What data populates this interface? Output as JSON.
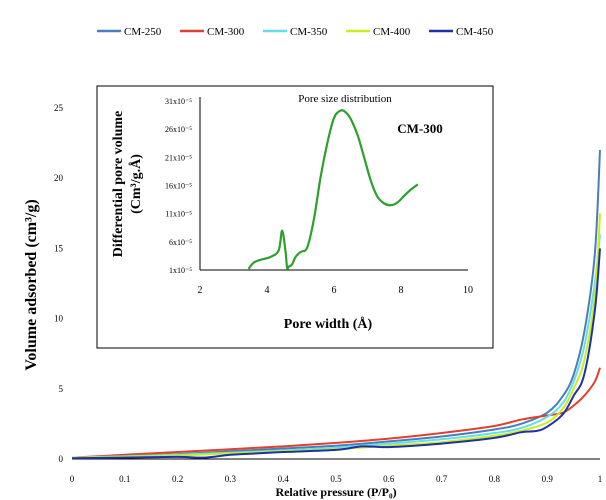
{
  "chart_data": [
    {
      "type": "line",
      "xlabel": "Relative pressure (P/P₀)",
      "ylabel": "Volume adsorbed (cm³/g)",
      "xlim": [
        0,
        1
      ],
      "ylim": [
        0,
        25
      ],
      "xticks": [
        "0",
        "0.1",
        "0.2",
        "0.3",
        "0.4",
        "0.5",
        "0.6",
        "0.7",
        "0.8",
        "0.9",
        "1"
      ],
      "yticks": [
        "0",
        "5",
        "10",
        "15",
        "20",
        "25"
      ],
      "grid": false,
      "legend_position": "top",
      "series": [
        {
          "name": "CM-250",
          "color": "#4a7ebb",
          "x": [
            0,
            0.1,
            0.2,
            0.3,
            0.4,
            0.5,
            0.6,
            0.7,
            0.8,
            0.85,
            0.9,
            0.93,
            0.95,
            0.97,
            0.99,
            1.0
          ],
          "y": [
            0.1,
            0.2,
            0.35,
            0.55,
            0.75,
            0.95,
            1.25,
            1.6,
            2.1,
            2.5,
            3.3,
            4.5,
            6.0,
            9.0,
            14.5,
            22
          ]
        },
        {
          "name": "CM-300",
          "color": "#e0412c",
          "x": [
            0,
            0.1,
            0.2,
            0.3,
            0.4,
            0.5,
            0.6,
            0.7,
            0.8,
            0.85,
            0.9,
            0.93,
            0.95,
            0.97,
            0.99,
            1.0
          ],
          "y": [
            0.1,
            0.3,
            0.5,
            0.7,
            0.9,
            1.15,
            1.45,
            1.85,
            2.35,
            2.8,
            3.1,
            3.3,
            3.8,
            4.5,
            5.5,
            6.5
          ]
        },
        {
          "name": "CM-350",
          "color": "#66ddea",
          "x": [
            0,
            0.1,
            0.2,
            0.3,
            0.4,
            0.5,
            0.6,
            0.7,
            0.8,
            0.85,
            0.9,
            0.93,
            0.95,
            0.97,
            0.99,
            1.0
          ],
          "y": [
            0.1,
            0.2,
            0.3,
            0.45,
            0.6,
            0.8,
            1.1,
            1.4,
            1.85,
            2.2,
            3.0,
            4.0,
            5.5,
            8.0,
            12.5,
            16
          ]
        },
        {
          "name": "CM-400",
          "color": "#c8ee1e",
          "x": [
            0,
            0.1,
            0.2,
            0.3,
            0.4,
            0.5,
            0.6,
            0.7,
            0.8,
            0.85,
            0.9,
            0.93,
            0.95,
            0.97,
            0.99,
            1.0
          ],
          "y": [
            0.1,
            0.15,
            0.25,
            0.4,
            0.55,
            0.7,
            0.95,
            1.2,
            1.65,
            2.0,
            2.6,
            3.6,
            5.0,
            7.0,
            11.5,
            17.5
          ]
        },
        {
          "name": "CM-450",
          "color": "#1f2fa8",
          "x": [
            0,
            0.1,
            0.2,
            0.25,
            0.3,
            0.35,
            0.4,
            0.5,
            0.55,
            0.6,
            0.7,
            0.8,
            0.85,
            0.88,
            0.9,
            0.93,
            0.95,
            0.97,
            0.99,
            1.0
          ],
          "y": [
            0.05,
            0.1,
            0.15,
            0.1,
            0.3,
            0.4,
            0.5,
            0.65,
            0.9,
            0.85,
            1.1,
            1.5,
            1.9,
            2.0,
            2.3,
            3.2,
            4.5,
            6.0,
            10.5,
            15
          ]
        }
      ]
    },
    {
      "type": "line",
      "title": "Pore size distribution",
      "annotation": "CM-300",
      "xlabel": "Pore width (Å)",
      "ylabel_lines": [
        "Differential pore volume",
        "(Cm³/g.Å)"
      ],
      "xlim": [
        2,
        10
      ],
      "ylim": [
        1,
        31
      ],
      "xticks": [
        "2",
        "4",
        "6",
        "8",
        "10"
      ],
      "yticks": [
        "1x10⁻⁵",
        "6x10⁻⁵",
        "11x10⁻⁵",
        "16x10⁻⁵",
        "21x10⁻⁵",
        "26x10⁻⁵",
        "31x10⁻⁵"
      ],
      "series": [
        {
          "color": "#2ca02c",
          "x": [
            3.45,
            3.6,
            3.8,
            4.1,
            4.35,
            4.45,
            4.55,
            4.6,
            4.65,
            4.75,
            4.85,
            5.0,
            5.2,
            5.4,
            5.6,
            5.8,
            6.0,
            6.2,
            6.35,
            6.5,
            6.7,
            6.9,
            7.1,
            7.3,
            7.5,
            7.7,
            7.9,
            8.1,
            8.3,
            8.5
          ],
          "y": [
            1.2,
            2.3,
            2.8,
            3.3,
            4.5,
            8.0,
            4.5,
            1.4,
            1.6,
            2.0,
            3.3,
            4.2,
            5.0,
            10.0,
            17.5,
            23.5,
            28.0,
            29.3,
            29.0,
            27.8,
            25.0,
            21.0,
            16.8,
            14.0,
            12.8,
            12.5,
            13.0,
            14.2,
            15.3,
            16.2
          ]
        }
      ]
    }
  ]
}
